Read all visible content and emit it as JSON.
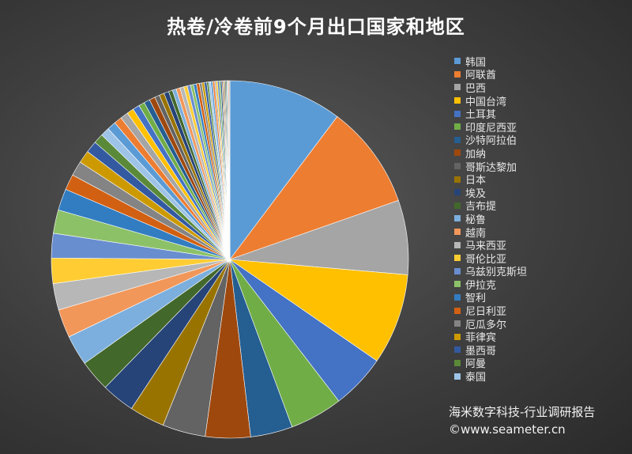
{
  "chart_data": {
    "type": "pie",
    "title": "热卷/冷卷前9个月出口国家和地区",
    "legend_position": "right",
    "categories": [
      "韩国",
      "阿联酋",
      "巴西",
      "中国台湾",
      "土耳其",
      "印度尼西亚",
      "沙特阿拉伯",
      "加纳",
      "哥斯达黎加",
      "日本",
      "埃及",
      "吉布提",
      "秘鲁",
      "越南",
      "马来西亚",
      "哥伦比亚",
      "乌兹别克斯坦",
      "伊拉克",
      "智利",
      "尼日利亚",
      "厄瓜多尔",
      "菲律宾",
      "墨西哥",
      "阿曼",
      "泰国"
    ],
    "values": [
      11.6,
      10.6,
      7.6,
      9.3,
      5.6,
      5.4,
      4.3,
      4.6,
      4.4,
      3.6,
      3.4,
      3.2,
      3.1,
      2.9,
      2.7,
      2.6,
      2.5,
      2.4,
      2.2,
      1.6,
      1.5,
      1.3,
      1.2,
      1.0,
      0.9
    ],
    "others": [
      0.9,
      0.8,
      0.8,
      0.7,
      0.7,
      0.6,
      0.6,
      0.6,
      0.5,
      0.5,
      0.5,
      0.4,
      0.4,
      0.4,
      0.4,
      0.35,
      0.35,
      0.3,
      0.3,
      0.3,
      0.25,
      0.25,
      0.25,
      0.2,
      0.2,
      0.2,
      0.2,
      0.15,
      0.15,
      0.15,
      0.15,
      0.15,
      0.1,
      0.1,
      0.1,
      0.1,
      0.1,
      0.1,
      0.1,
      0.1
    ],
    "colors": [
      "#5b9bd5",
      "#ed7d31",
      "#a5a5a5",
      "#ffc000",
      "#4472c4",
      "#70ad47",
      "#255e91",
      "#9e480e",
      "#636363",
      "#997300",
      "#264478",
      "#43682b",
      "#7cafdd",
      "#f1975a",
      "#b7b7b7",
      "#ffcd33",
      "#698ed0",
      "#8cc168",
      "#327dc2",
      "#d26012",
      "#848484",
      "#cc9a00",
      "#335aa1",
      "#5a8a39",
      "#9dc3e6"
    ]
  },
  "footer": {
    "line1": "海米数字科技-行业调研报告",
    "line2": "©www.seameter.cn"
  }
}
